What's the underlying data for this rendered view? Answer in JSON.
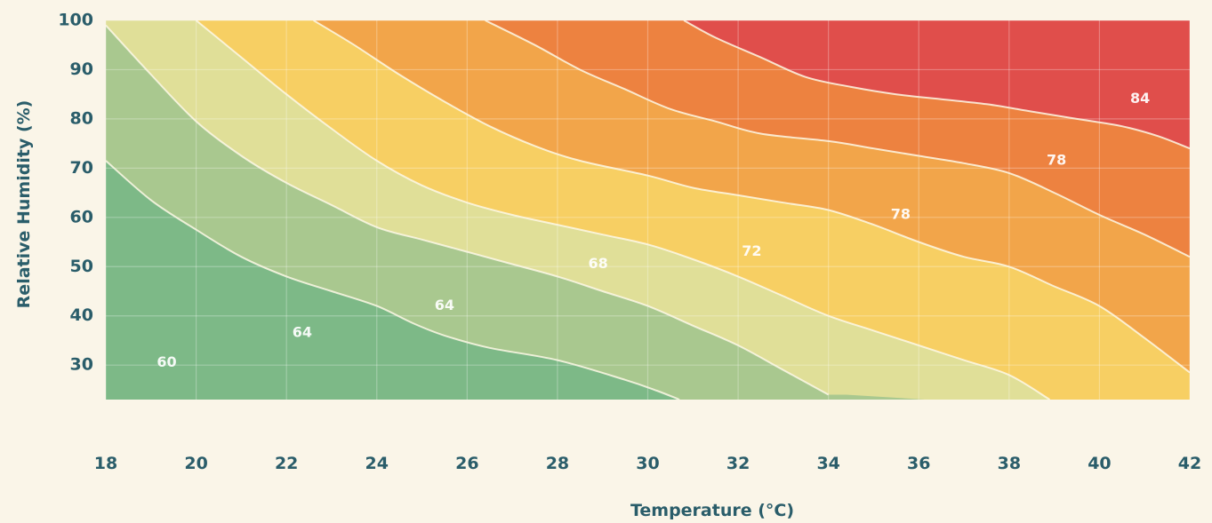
{
  "chart_data": {
    "type": "contour",
    "title": "",
    "xlabel": "Temperature (°C)",
    "ylabel": "Relative Humidity (%)",
    "xlim": [
      18,
      42
    ],
    "ylim": [
      23,
      100
    ],
    "xticks": [
      18,
      20,
      22,
      24,
      26,
      28,
      30,
      32,
      34,
      36,
      38,
      40,
      42
    ],
    "yticks": [
      30,
      40,
      50,
      60,
      70,
      80,
      90,
      100
    ],
    "grid": true,
    "band_colors": [
      "#7db987",
      "#a9c88f",
      "#e0df98",
      "#f7cf63",
      "#f2a54a",
      "#ed8240",
      "#e04e4b"
    ],
    "contour_lines": [
      {
        "points": [
          [
            18,
            71.5
          ],
          [
            19,
            63.5
          ],
          [
            20,
            57.5
          ],
          [
            21,
            52
          ],
          [
            22,
            48
          ],
          [
            23,
            45
          ],
          [
            24,
            42
          ],
          [
            24.8,
            38.5
          ],
          [
            25.5,
            36
          ],
          [
            26.5,
            33.5
          ],
          [
            28,
            31
          ],
          [
            29.5,
            27
          ],
          [
            30.2,
            24.8
          ],
          [
            30.7,
            23
          ]
        ]
      },
      {
        "points": [
          [
            18,
            99
          ],
          [
            19,
            89
          ],
          [
            20,
            79.5
          ],
          [
            21,
            72.5
          ],
          [
            22,
            67
          ],
          [
            23,
            62.5
          ],
          [
            24,
            58
          ],
          [
            25,
            55.5
          ],
          [
            26,
            53
          ],
          [
            27,
            50.5
          ],
          [
            28,
            48
          ],
          [
            29,
            45
          ],
          [
            30,
            42
          ],
          [
            31,
            38
          ],
          [
            32,
            34
          ],
          [
            33,
            29
          ],
          [
            34,
            24
          ]
        ]
      },
      {
        "points": [
          [
            20,
            100
          ],
          [
            21,
            92.5
          ],
          [
            22,
            85
          ],
          [
            23,
            78
          ],
          [
            24,
            71.5
          ],
          [
            25,
            66.5
          ],
          [
            26,
            63
          ],
          [
            27,
            60.5
          ],
          [
            28,
            58.5
          ],
          [
            29,
            56.5
          ],
          [
            30,
            54.5
          ],
          [
            31,
            51.5
          ],
          [
            32,
            48
          ],
          [
            33,
            44
          ],
          [
            34,
            40
          ],
          [
            35,
            37
          ],
          [
            36,
            34
          ],
          [
            37,
            31
          ],
          [
            38,
            28
          ],
          [
            38.9,
            23
          ]
        ]
      },
      {
        "points": [
          [
            22.6,
            100
          ],
          [
            23.5,
            95
          ],
          [
            24.5,
            89
          ],
          [
            25.5,
            83.5
          ],
          [
            26.5,
            78.5
          ],
          [
            27.5,
            74.5
          ],
          [
            28.5,
            71.5
          ],
          [
            30,
            68.5
          ],
          [
            31,
            66
          ],
          [
            32,
            64.5
          ],
          [
            33,
            63
          ],
          [
            34,
            61.5
          ],
          [
            35,
            58.5
          ],
          [
            36,
            55
          ],
          [
            37,
            52
          ],
          [
            38,
            50
          ],
          [
            39,
            46
          ],
          [
            40,
            42
          ],
          [
            41,
            35.5
          ],
          [
            42,
            28.5
          ]
        ]
      },
      {
        "points": [
          [
            26.4,
            100
          ],
          [
            27.5,
            95
          ],
          [
            28.5,
            90
          ],
          [
            29.5,
            86
          ],
          [
            30.5,
            82
          ],
          [
            31.5,
            79.5
          ],
          [
            32.5,
            77
          ],
          [
            34,
            75.5
          ],
          [
            35,
            74
          ],
          [
            36,
            72.5
          ],
          [
            37,
            71
          ],
          [
            38,
            69
          ],
          [
            39,
            65
          ],
          [
            40,
            60.5
          ],
          [
            41,
            56.5
          ],
          [
            42,
            52
          ]
        ]
      },
      {
        "points": [
          [
            30.8,
            100
          ],
          [
            31.5,
            96.5
          ],
          [
            32.5,
            92.5
          ],
          [
            33.5,
            88.5
          ],
          [
            34.5,
            86.5
          ],
          [
            35.5,
            85
          ],
          [
            36.5,
            84
          ],
          [
            37.5,
            83
          ],
          [
            38.5,
            81.5
          ],
          [
            39.5,
            80
          ],
          [
            40.5,
            78.5
          ],
          [
            41.3,
            76.5
          ],
          [
            42,
            74
          ]
        ]
      }
    ],
    "annotations": [
      {
        "text": "60",
        "x": 19.35,
        "y": 30.5
      },
      {
        "text": "64",
        "x": 22.35,
        "y": 36.5
      },
      {
        "text": "64",
        "x": 25.5,
        "y": 42
      },
      {
        "text": "68",
        "x": 28.9,
        "y": 50.5
      },
      {
        "text": "72",
        "x": 32.3,
        "y": 53
      },
      {
        "text": "78",
        "x": 35.6,
        "y": 60.5
      },
      {
        "text": "78",
        "x": 39.05,
        "y": 71.5
      },
      {
        "text": "84",
        "x": 40.9,
        "y": 84
      }
    ]
  }
}
